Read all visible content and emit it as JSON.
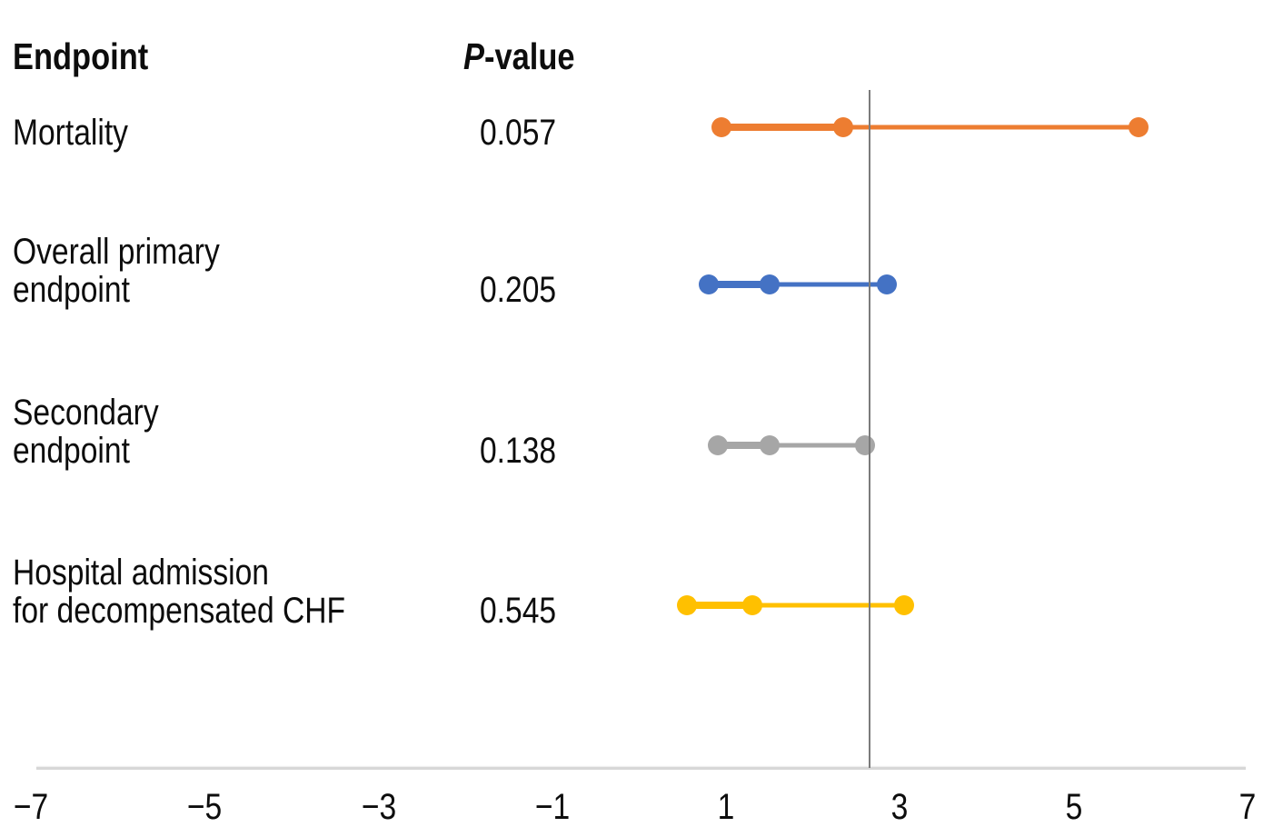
{
  "chart_data": {
    "type": "scatter",
    "variant": "forest-plot-dot-and-interval",
    "title": "",
    "xlabel": "",
    "ylabel": "",
    "columns": {
      "endpoint_header": "Endpoint",
      "pvalue_header_italic": "P",
      "pvalue_header_rest": "-value"
    },
    "x_axis": {
      "min": -7,
      "max": 7,
      "tick_values": [
        -7,
        -5,
        -3,
        -1,
        1,
        3,
        5,
        7
      ],
      "tick_labels": [
        "−7",
        "−5",
        "−3",
        "−1",
        "1",
        "3",
        "5",
        "7"
      ],
      "grid": false,
      "legend": "none"
    },
    "reference_line_x": 2.65,
    "reference_line_color": "#7b7b7b",
    "axis_color": "#d7d7d7",
    "series": [
      {
        "name": "Mortality",
        "label_lines": [
          "Mortality"
        ],
        "p_value": "0.057",
        "color": "#ED7D31",
        "low": 0.95,
        "mid": 2.35,
        "high": 5.75
      },
      {
        "name": "Overall primary endpoint",
        "label_lines": [
          "Overall primary",
          "endpoint"
        ],
        "p_value": "0.205",
        "color": "#4472C4",
        "low": 0.8,
        "mid": 1.5,
        "high": 2.85
      },
      {
        "name": "Secondary endpoint",
        "label_lines": [
          "Secondary",
          "endpoint"
        ],
        "p_value": "0.138",
        "color": "#A6A6A6",
        "low": 0.9,
        "mid": 1.5,
        "high": 2.6
      },
      {
        "name": "Hospital admission for decompensated CHF",
        "label_lines": [
          "Hospital admission",
          "for decompensated CHF"
        ],
        "p_value": "0.545",
        "color": "#FFC000",
        "low": 0.55,
        "mid": 1.3,
        "high": 3.05
      }
    ]
  }
}
